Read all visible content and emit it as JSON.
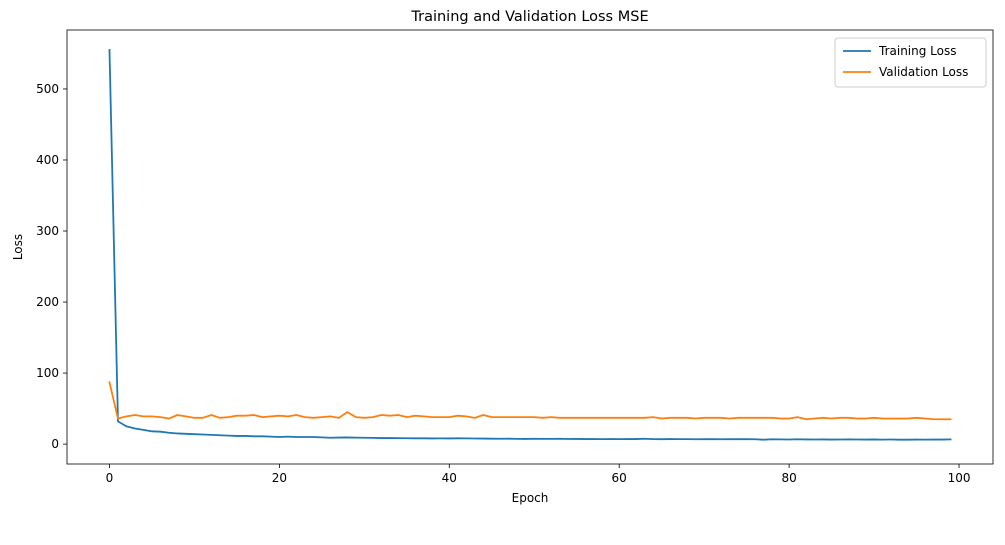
{
  "chart_data": {
    "type": "line",
    "title": "Training and Validation Loss MSE",
    "xlabel": "Epoch",
    "ylabel": "Loss",
    "xlim": [
      -5,
      104
    ],
    "ylim": [
      -28,
      583
    ],
    "xticks": [
      0,
      20,
      40,
      60,
      80,
      100
    ],
    "yticks": [
      0,
      100,
      200,
      300,
      400,
      500
    ],
    "grid": false,
    "legend_position": "top-right",
    "series": [
      {
        "name": "Training Loss",
        "color": "#1f77b4",
        "x": [
          0,
          1,
          2,
          3,
          4,
          5,
          6,
          7,
          8,
          9,
          10,
          11,
          12,
          13,
          14,
          15,
          16,
          17,
          18,
          19,
          20,
          21,
          22,
          23,
          24,
          25,
          26,
          27,
          28,
          29,
          30,
          31,
          32,
          33,
          34,
          35,
          36,
          37,
          38,
          39,
          40,
          41,
          42,
          43,
          44,
          45,
          46,
          47,
          48,
          49,
          50,
          51,
          52,
          53,
          54,
          55,
          56,
          57,
          58,
          59,
          60,
          61,
          62,
          63,
          64,
          65,
          66,
          67,
          68,
          69,
          70,
          71,
          72,
          73,
          74,
          75,
          76,
          77,
          78,
          79,
          80,
          81,
          82,
          83,
          84,
          85,
          86,
          87,
          88,
          89,
          90,
          91,
          92,
          93,
          94,
          95,
          96,
          97,
          98,
          99
        ],
        "values": [
          555,
          32,
          25,
          22,
          20,
          18,
          17.5,
          16,
          15,
          14.5,
          14,
          13.5,
          13,
          12.5,
          12,
          11.5,
          11.5,
          11,
          11,
          10.5,
          10,
          10.5,
          10,
          10,
          10,
          9.5,
          9,
          9.2,
          9.4,
          9.1,
          9,
          8.8,
          8.5,
          8.6,
          8.4,
          8.3,
          8.2,
          8.2,
          8,
          8.1,
          8,
          8.2,
          8.1,
          7.9,
          7.8,
          7.6,
          7.5,
          7.6,
          7.4,
          7.3,
          7.5,
          7.4,
          7.4,
          7.5,
          7.2,
          7.3,
          7.1,
          7.2,
          7,
          7.2,
          7,
          7.2,
          7.1,
          7.5,
          7,
          6.9,
          7.1,
          7,
          7,
          6.8,
          6.9,
          7,
          6.8,
          7,
          6.9,
          6.9,
          6.8,
          6.2,
          6.8,
          6.7,
          6.5,
          6.8,
          6.6,
          6.5,
          6.6,
          6.4,
          6.5,
          6.6,
          6.5,
          6.4,
          6.6,
          6.3,
          6.5,
          6.2,
          6.2,
          6.4,
          6.3,
          6.5,
          6.4,
          6.6
        ]
      },
      {
        "name": "Validation Loss",
        "color": "#ff7f0e",
        "x": [
          0,
          1,
          2,
          3,
          4,
          5,
          6,
          7,
          8,
          9,
          10,
          11,
          12,
          13,
          14,
          15,
          16,
          17,
          18,
          19,
          20,
          21,
          22,
          23,
          24,
          25,
          26,
          27,
          28,
          29,
          30,
          31,
          32,
          33,
          34,
          35,
          36,
          37,
          38,
          39,
          40,
          41,
          42,
          43,
          44,
          45,
          46,
          47,
          48,
          49,
          50,
          51,
          52,
          53,
          54,
          55,
          56,
          57,
          58,
          59,
          60,
          61,
          62,
          63,
          64,
          65,
          66,
          67,
          68,
          69,
          70,
          71,
          72,
          73,
          74,
          75,
          76,
          77,
          78,
          79,
          80,
          81,
          82,
          83,
          84,
          85,
          86,
          87,
          88,
          89,
          90,
          91,
          92,
          93,
          94,
          95,
          96,
          97,
          98,
          99
        ],
        "values": [
          87,
          36,
          39,
          41,
          39,
          39,
          38,
          36,
          41,
          39,
          37,
          37,
          41,
          37,
          38,
          40,
          40,
          41,
          38,
          39,
          40,
          39,
          41,
          38,
          37,
          38,
          39,
          37,
          45,
          38,
          37,
          38,
          41,
          40,
          41,
          38,
          40,
          39,
          38,
          38,
          38,
          40,
          39,
          37,
          41,
          38,
          38,
          38,
          38,
          38,
          38,
          37,
          38,
          37,
          37,
          37,
          37,
          37,
          37,
          37,
          37,
          37,
          37,
          37,
          38,
          36,
          37,
          37,
          37,
          36,
          37,
          37,
          37,
          36,
          37,
          37,
          37,
          37,
          37,
          36,
          36,
          38,
          35,
          36,
          37,
          36,
          37,
          37,
          36,
          36,
          37,
          36,
          36,
          36,
          36,
          37,
          36,
          35,
          35,
          35
        ]
      }
    ]
  }
}
